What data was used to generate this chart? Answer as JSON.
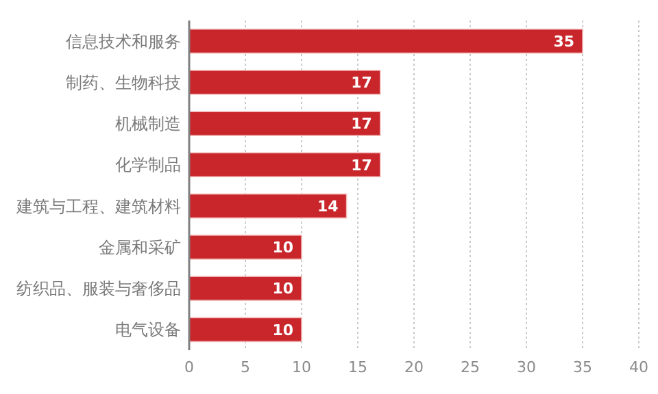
{
  "chart_data": {
    "type": "bar",
    "orientation": "horizontal",
    "categories": [
      "信息技术和服务",
      "制药、生物科技",
      "机械制造",
      "化学制品",
      "建筑与工程、建筑材料",
      "金属和采矿",
      "纺织品、服装与奢侈品",
      "电气设备"
    ],
    "values": [
      35,
      17,
      17,
      17,
      14,
      10,
      10,
      10
    ],
    "color": "#c8262b",
    "xlim": [
      0,
      40
    ],
    "xticks": [
      0,
      5,
      10,
      15,
      20,
      25,
      30,
      35,
      40
    ],
    "grid": "x",
    "data_labels": true
  }
}
